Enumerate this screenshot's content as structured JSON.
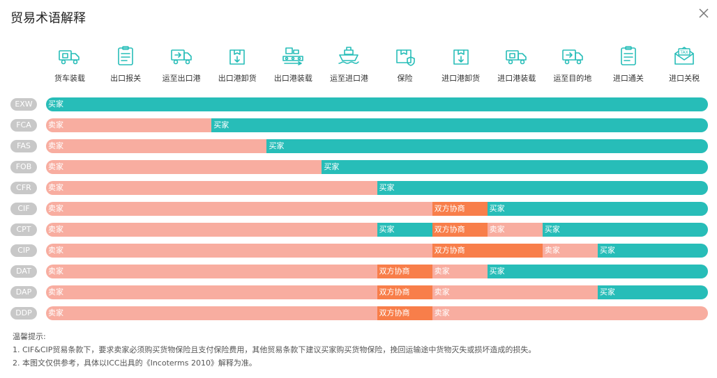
{
  "title": "贸易术语解释",
  "close_icon": "close-icon",
  "colors": {
    "seller": "#f8ada0",
    "buyer": "#27bdb8",
    "negotiated": "#f87e4a",
    "icon": "#27bdb8",
    "term_badge": "#c8c8c8"
  },
  "steps": [
    {
      "label": "货车装载",
      "icon": "truck-loading-icon"
    },
    {
      "label": "出口报关",
      "icon": "clipboard-icon"
    },
    {
      "label": "运至出口港",
      "icon": "delivery-truck-icon"
    },
    {
      "label": "出口港卸货",
      "icon": "box-unload-icon"
    },
    {
      "label": "出口港装载",
      "icon": "conveyor-icon"
    },
    {
      "label": "运至进口港",
      "icon": "ship-icon"
    },
    {
      "label": "保险",
      "icon": "insured-box-icon"
    },
    {
      "label": "进口港卸货",
      "icon": "box-unload-icon"
    },
    {
      "label": "进口港装载",
      "icon": "truck-loading-icon"
    },
    {
      "label": "运至目的地",
      "icon": "delivery-truck-icon"
    },
    {
      "label": "进口通关",
      "icon": "clipboard-icon"
    },
    {
      "label": "进口关税",
      "icon": "tax-envelope-icon"
    }
  ],
  "chart_data": {
    "type": "bar",
    "stacked": true,
    "x_units": "step index (0 = start of 货车装载, 12 = end of 进口关税)",
    "xlim": [
      0,
      12
    ],
    "categories": [
      "EXW",
      "FCA",
      "FAS",
      "FOB",
      "CFR",
      "CIF",
      "CPT",
      "CIP",
      "DAT",
      "DAP",
      "DDP"
    ],
    "rows": [
      {
        "term": "EXW",
        "segments": [
          {
            "party": "买家",
            "kind": "buyer",
            "start": 0,
            "end": 12
          }
        ]
      },
      {
        "term": "FCA",
        "segments": [
          {
            "party": "卖家",
            "kind": "seller",
            "start": 0,
            "end": 3
          },
          {
            "party": "买家",
            "kind": "buyer",
            "start": 3,
            "end": 12
          }
        ]
      },
      {
        "term": "FAS",
        "segments": [
          {
            "party": "卖家",
            "kind": "seller",
            "start": 0,
            "end": 4
          },
          {
            "party": "买家",
            "kind": "buyer",
            "start": 4,
            "end": 12
          }
        ]
      },
      {
        "term": "FOB",
        "segments": [
          {
            "party": "卖家",
            "kind": "seller",
            "start": 0,
            "end": 5
          },
          {
            "party": "买家",
            "kind": "buyer",
            "start": 5,
            "end": 12
          }
        ]
      },
      {
        "term": "CFR",
        "segments": [
          {
            "party": "卖家",
            "kind": "seller",
            "start": 0,
            "end": 6
          },
          {
            "party": "买家",
            "kind": "buyer",
            "start": 6,
            "end": 12
          }
        ]
      },
      {
        "term": "CIF",
        "segments": [
          {
            "party": "卖家",
            "kind": "seller",
            "start": 0,
            "end": 7
          },
          {
            "party": "双方协商",
            "kind": "negotiated",
            "start": 7,
            "end": 8
          },
          {
            "party": "买家",
            "kind": "buyer",
            "start": 8,
            "end": 12
          }
        ]
      },
      {
        "term": "CPT",
        "segments": [
          {
            "party": "卖家",
            "kind": "seller",
            "start": 0,
            "end": 6
          },
          {
            "party": "买家",
            "kind": "buyer",
            "start": 6,
            "end": 7
          },
          {
            "party": "双方协商",
            "kind": "negotiated",
            "start": 7,
            "end": 8
          },
          {
            "party": "卖家",
            "kind": "seller",
            "start": 8,
            "end": 9
          },
          {
            "party": "买家",
            "kind": "buyer",
            "start": 9,
            "end": 12
          }
        ]
      },
      {
        "term": "CIP",
        "segments": [
          {
            "party": "卖家",
            "kind": "seller",
            "start": 0,
            "end": 7
          },
          {
            "party": "双方协商",
            "kind": "negotiated",
            "start": 7,
            "end": 9
          },
          {
            "party": "卖家",
            "kind": "seller",
            "start": 9,
            "end": 10
          },
          {
            "party": "买家",
            "kind": "buyer",
            "start": 10,
            "end": 12
          }
        ]
      },
      {
        "term": "DAT",
        "segments": [
          {
            "party": "卖家",
            "kind": "seller",
            "start": 0,
            "end": 6
          },
          {
            "party": "双方协商",
            "kind": "negotiated",
            "start": 6,
            "end": 7
          },
          {
            "party": "卖家",
            "kind": "seller",
            "start": 7,
            "end": 8
          },
          {
            "party": "买家",
            "kind": "buyer",
            "start": 8,
            "end": 12
          }
        ]
      },
      {
        "term": "DAP",
        "segments": [
          {
            "party": "卖家",
            "kind": "seller",
            "start": 0,
            "end": 6
          },
          {
            "party": "双方协商",
            "kind": "negotiated",
            "start": 6,
            "end": 7
          },
          {
            "party": "卖家",
            "kind": "seller",
            "start": 7,
            "end": 10
          },
          {
            "party": "买家",
            "kind": "buyer",
            "start": 10,
            "end": 12
          }
        ]
      },
      {
        "term": "DDP",
        "segments": [
          {
            "party": "卖家",
            "kind": "seller",
            "start": 0,
            "end": 6
          },
          {
            "party": "双方协商",
            "kind": "negotiated",
            "start": 6,
            "end": 7
          },
          {
            "party": "卖家",
            "kind": "seller",
            "start": 7,
            "end": 12
          }
        ]
      }
    ]
  },
  "notes": {
    "heading": "温馨提示:",
    "line1": "1. CIF&CIP贸易条款下，要求卖家必须购买货物保险且支付保险费用，其他贸易条款下建议买家购买货物保险，挽回运输途中货物灭失或损坏造成的损失。",
    "line2": "2. 本图文仅供参考，具体以ICC出具的《Incoterms 2010》解释为准。"
  }
}
